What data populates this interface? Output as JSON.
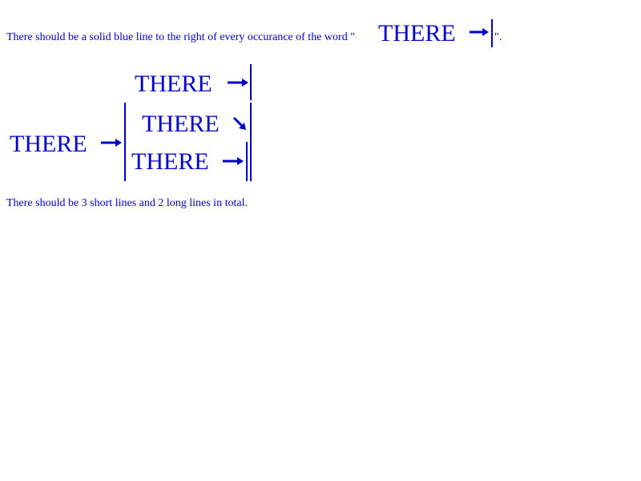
{
  "intro": {
    "before": "There should be a solid blue line to the right of every occurance of the word \"",
    "word": "THERE",
    "after": "\"."
  },
  "top": {
    "word": "THERE"
  },
  "left": {
    "word": "THERE"
  },
  "middle": {
    "word": "THERE"
  },
  "bottom": {
    "word": "THERE"
  },
  "footer": {
    "text": "There should be 3 short lines and 2 long lines in total."
  },
  "colors": {
    "text": "#0000cc",
    "background": "#ffffff"
  },
  "icons": {
    "arrow_right": "arrow-right-icon",
    "arrow_down_right": "arrow-down-right-icon"
  }
}
